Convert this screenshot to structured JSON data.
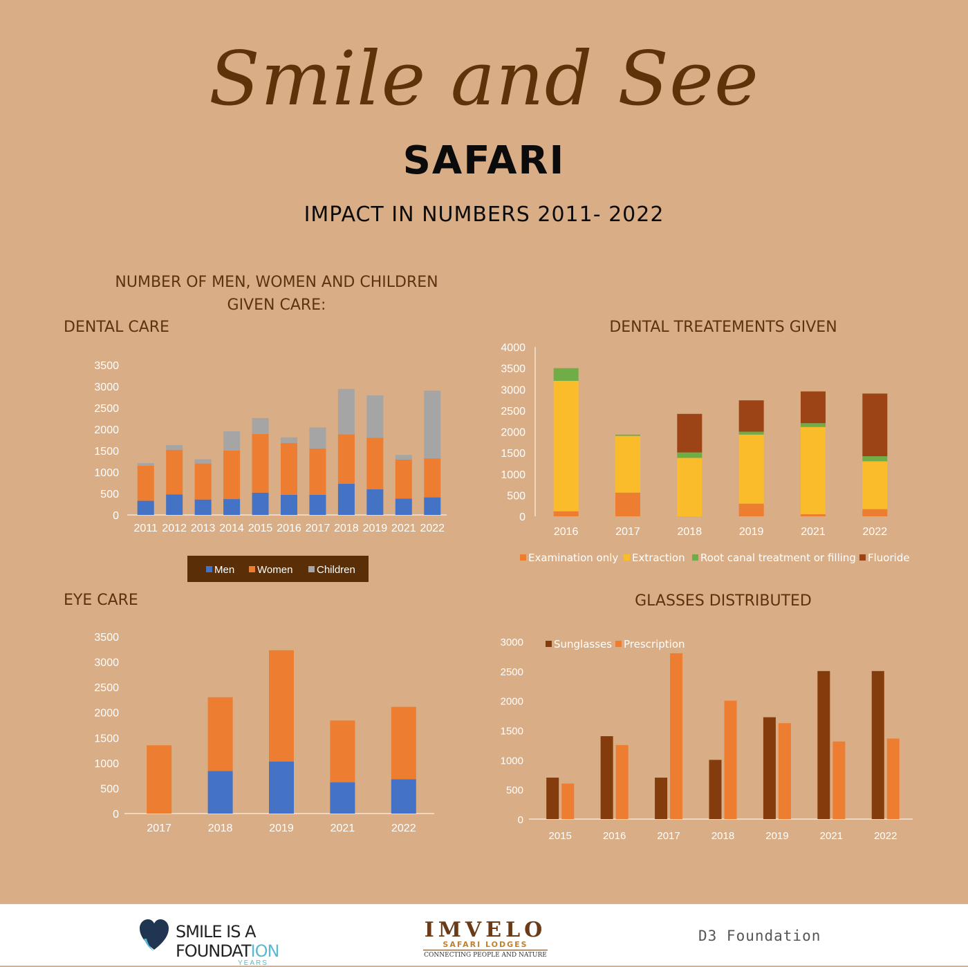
{
  "header": {
    "title": "Smile and See",
    "subtitle": "SAFARI",
    "tagline": "IMPACT IN NUMBERS 2011- 2022"
  },
  "section_heading": {
    "line1": "NUMBER OF MEN, WOMEN AND CHILDREN",
    "line2": "GIVEN CARE:"
  },
  "colors": {
    "background": "#d9ad85",
    "title_brown": "#5e330a",
    "men_blue": "#4472c4",
    "women_orange": "#ed7d31",
    "children_gray": "#a5a5a5",
    "extraction_yellow": "#fbbc2c",
    "root_canal_green": "#70ad47",
    "fluoride_brown": "#9c4416",
    "sunglasses_brown": "#843c0c",
    "legend_box": "#5a2e06"
  },
  "chart_data": [
    {
      "id": "dental-care",
      "type": "bar",
      "stacked": true,
      "title": "DENTAL CARE",
      "categories": [
        "2011",
        "2012",
        "2013",
        "2014",
        "2015",
        "2016",
        "2017",
        "2018",
        "2019",
        "2021",
        "2022"
      ],
      "series": [
        {
          "name": "Men",
          "color": "#4472c4",
          "values": [
            330,
            480,
            360,
            370,
            520,
            470,
            470,
            730,
            600,
            380,
            410
          ]
        },
        {
          "name": "Women",
          "color": "#ed7d31",
          "values": [
            820,
            1040,
            840,
            1130,
            1370,
            1210,
            1080,
            1150,
            1200,
            910,
            910
          ]
        },
        {
          "name": "Children",
          "color": "#a5a5a5",
          "values": [
            60,
            110,
            100,
            450,
            370,
            130,
            490,
            1060,
            990,
            110,
            1580
          ]
        }
      ],
      "yticks": [
        0,
        500,
        1000,
        1500,
        2000,
        2500,
        3000,
        3500
      ],
      "ylim": [
        0,
        3500
      ],
      "legend": "bottom",
      "grid": false
    },
    {
      "id": "dental-treatments",
      "type": "bar",
      "stacked": true,
      "title": "DENTAL TREATEMENTS GIVEN",
      "categories": [
        "2016",
        "2017",
        "2018",
        "2019",
        "2021",
        "2022"
      ],
      "series": [
        {
          "name": "Examination only",
          "color": "#ed7d31",
          "values": [
            120,
            560,
            0,
            300,
            50,
            170
          ]
        },
        {
          "name": "Extraction",
          "color": "#fbbc2c",
          "values": [
            3080,
            1340,
            1380,
            1630,
            2060,
            1130
          ]
        },
        {
          "name": "Root canal treatment or filling",
          "color": "#70ad47",
          "values": [
            300,
            30,
            130,
            70,
            90,
            120
          ]
        },
        {
          "name": "Fluoride",
          "color": "#9c4416",
          "values": [
            0,
            0,
            910,
            740,
            750,
            1480
          ]
        }
      ],
      "yticks": [
        0,
        500,
        1000,
        1500,
        2000,
        2500,
        3000,
        3500,
        4000
      ],
      "ylim": [
        0,
        4000
      ],
      "legend": "bottom",
      "grid": false
    },
    {
      "id": "eye-care",
      "type": "bar",
      "stacked": true,
      "title": "EYE CARE",
      "categories": [
        "2017",
        "2018",
        "2019",
        "2021",
        "2022"
      ],
      "series": [
        {
          "color": "#4472c4",
          "values": [
            0,
            840,
            1030,
            620,
            680
          ]
        },
        {
          "color": "#ed7d31",
          "values": [
            1350,
            1460,
            2200,
            1220,
            1430
          ]
        }
      ],
      "yticks": [
        0,
        500,
        1000,
        1500,
        2000,
        2500,
        3000,
        3500
      ],
      "ylim": [
        0,
        3500
      ],
      "grid": false
    },
    {
      "id": "glasses",
      "type": "bar",
      "stacked": false,
      "title": "GLASSES DISTRIBUTED",
      "categories": [
        "2015",
        "2016",
        "2017",
        "2018",
        "2019",
        "2021",
        "2022"
      ],
      "series": [
        {
          "name": "Sunglasses",
          "color": "#843c0c",
          "values": [
            700,
            1400,
            700,
            1000,
            1720,
            2500,
            2500
          ]
        },
        {
          "name": "Prescription",
          "color": "#ed7d31",
          "values": [
            600,
            1250,
            2800,
            2000,
            1620,
            1310,
            1360
          ]
        }
      ],
      "yticks": [
        0,
        500,
        1000,
        1500,
        2000,
        2500,
        3000
      ],
      "ylim": [
        0,
        3000
      ],
      "legend": "top-left",
      "grid": false
    }
  ],
  "footer": {
    "smile_line1": "SMILE IS A",
    "smile_line2a": "FOUNDAT",
    "smile_line2b": "ION",
    "smile_years": "YEARS",
    "imvelo_main": "IMVELO",
    "imvelo_sub": "SAFARI LODGES",
    "imvelo_tag": "CONNECTING PEOPLE AND NATURE",
    "d3": "D3 Foundation"
  }
}
